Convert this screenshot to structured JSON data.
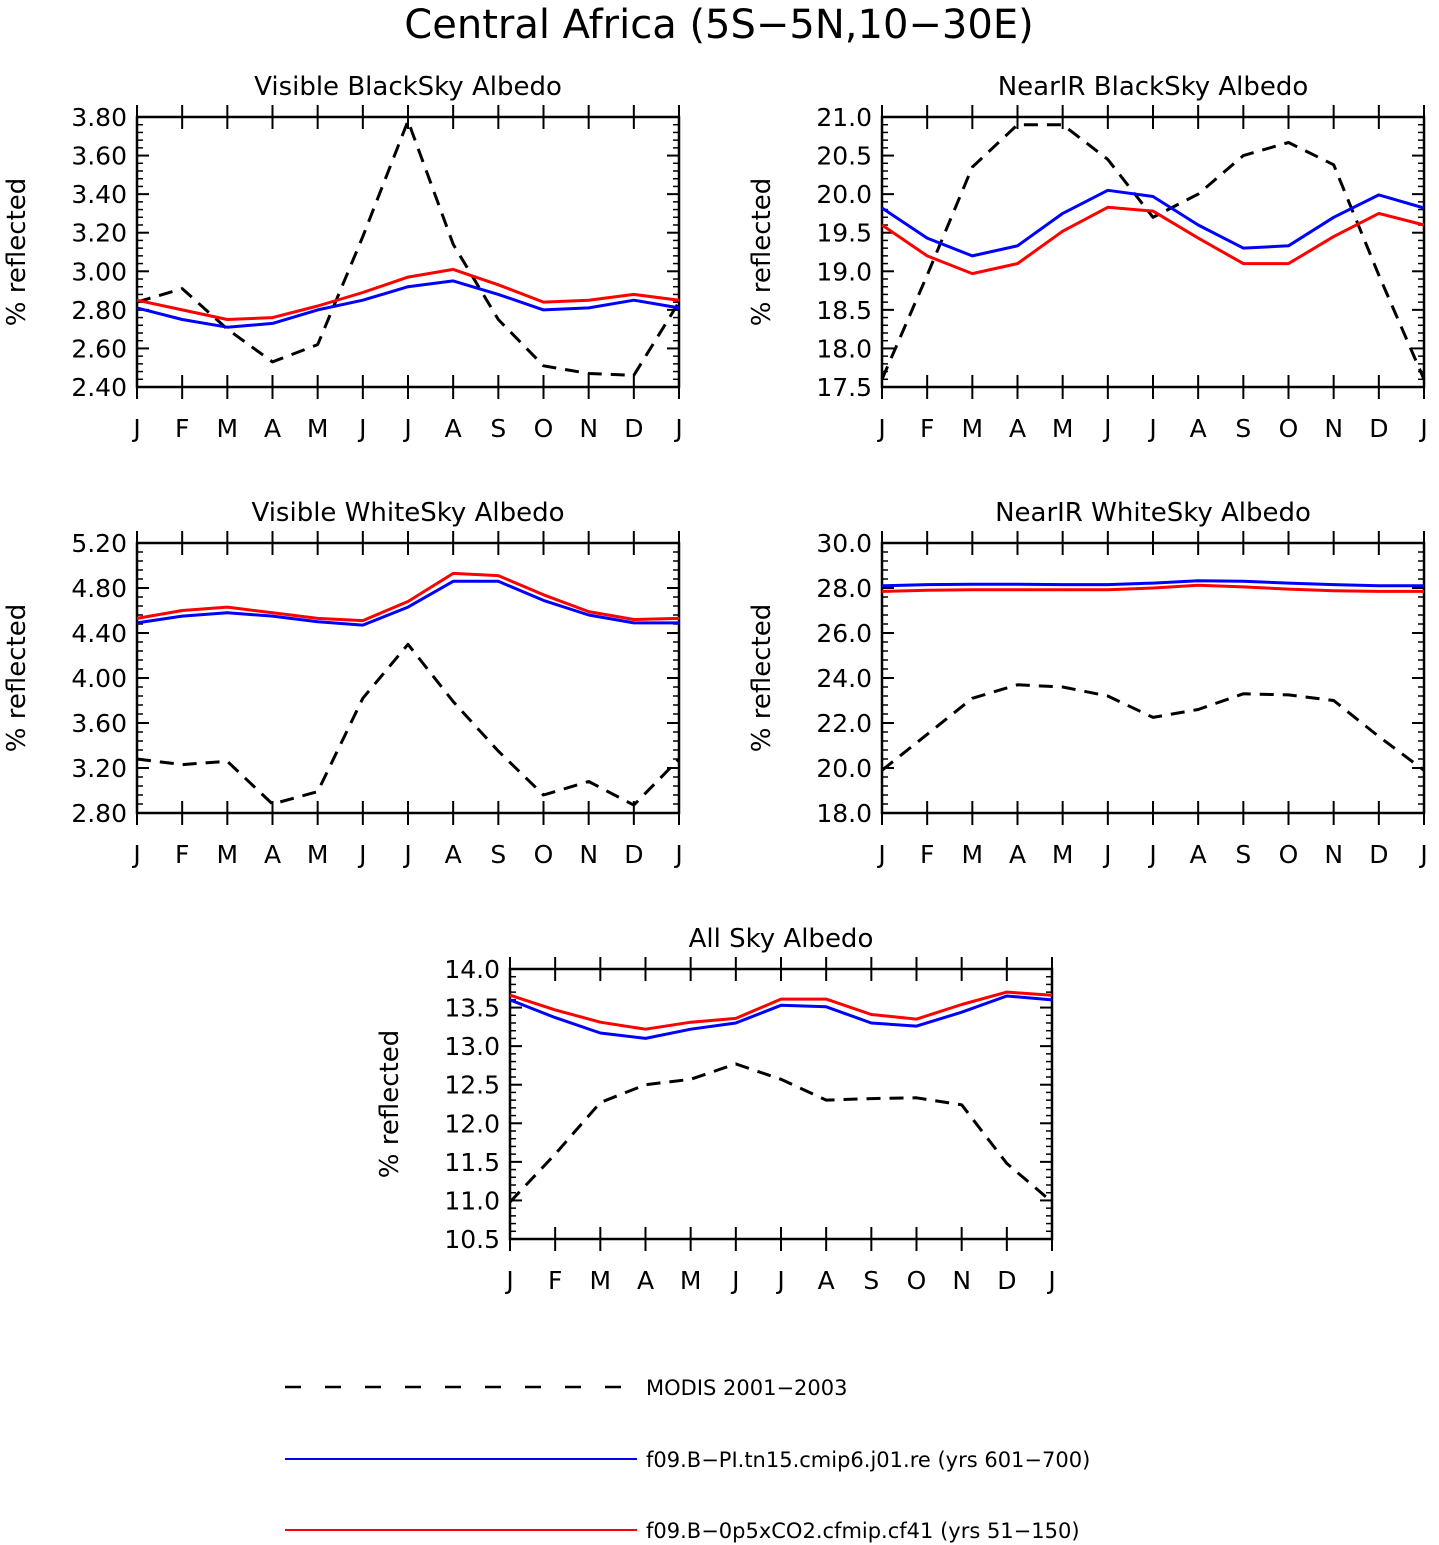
{
  "figure": {
    "title": "Central Africa (5S−5N,10−30E)"
  },
  "colors": {
    "modis": "#000000",
    "pi": "#0000ff",
    "co2": "#ff0000"
  },
  "chart_data": [
    {
      "type": "line",
      "title": "Visible BlackSky Albedo",
      "ylabel": "% reflected",
      "categories": [
        "J",
        "F",
        "M",
        "A",
        "M",
        "J",
        "J",
        "A",
        "S",
        "O",
        "N",
        "D",
        "J"
      ],
      "ylim": [
        2.4,
        3.8
      ],
      "yticks": [
        "2.40",
        "2.60",
        "2.80",
        "3.00",
        "3.20",
        "3.40",
        "3.60",
        "3.80"
      ],
      "series": [
        {
          "key": "modis",
          "values": [
            2.84,
            2.91,
            2.7,
            2.53,
            2.62,
            3.18,
            3.78,
            3.14,
            2.75,
            2.51,
            2.47,
            2.46,
            2.84
          ]
        },
        {
          "key": "pi",
          "values": [
            2.81,
            2.75,
            2.71,
            2.73,
            2.8,
            2.85,
            2.92,
            2.95,
            2.88,
            2.8,
            2.81,
            2.85,
            2.81
          ]
        },
        {
          "key": "co2",
          "values": [
            2.85,
            2.8,
            2.75,
            2.76,
            2.82,
            2.89,
            2.97,
            3.01,
            2.93,
            2.84,
            2.85,
            2.88,
            2.85
          ]
        }
      ]
    },
    {
      "type": "line",
      "title": "NearIR BlackSky Albedo",
      "ylabel": "% reflected",
      "categories": [
        "J",
        "F",
        "M",
        "A",
        "M",
        "J",
        "J",
        "A",
        "S",
        "O",
        "N",
        "D",
        "J"
      ],
      "ylim": [
        17.5,
        21.0
      ],
      "yticks": [
        "17.5",
        "18.0",
        "18.5",
        "19.0",
        "19.5",
        "20.0",
        "20.5",
        "21.0"
      ],
      "series": [
        {
          "key": "modis",
          "values": [
            17.6,
            18.95,
            20.35,
            20.9,
            20.9,
            20.45,
            19.7,
            20.0,
            20.5,
            20.67,
            20.38,
            18.95,
            17.6
          ]
        },
        {
          "key": "pi",
          "values": [
            19.82,
            19.43,
            19.2,
            19.33,
            19.75,
            20.05,
            19.97,
            19.6,
            19.3,
            19.33,
            19.7,
            19.99,
            19.82
          ]
        },
        {
          "key": "co2",
          "values": [
            19.6,
            19.2,
            18.97,
            19.1,
            19.52,
            19.83,
            19.78,
            19.43,
            19.1,
            19.1,
            19.45,
            19.75,
            19.6
          ]
        }
      ]
    },
    {
      "type": "line",
      "title": "Visible WhiteSky Albedo",
      "ylabel": "% reflected",
      "categories": [
        "J",
        "F",
        "M",
        "A",
        "M",
        "J",
        "J",
        "A",
        "S",
        "O",
        "N",
        "D",
        "J"
      ],
      "ylim": [
        2.8,
        5.2
      ],
      "yticks": [
        "2.80",
        "3.20",
        "3.60",
        "4.00",
        "4.40",
        "4.80",
        "5.20"
      ],
      "series": [
        {
          "key": "modis",
          "values": [
            3.28,
            3.23,
            3.26,
            2.88,
            2.99,
            3.82,
            4.3,
            3.79,
            3.35,
            2.96,
            3.08,
            2.87,
            3.28
          ]
        },
        {
          "key": "pi",
          "values": [
            4.49,
            4.55,
            4.58,
            4.55,
            4.5,
            4.47,
            4.63,
            4.86,
            4.86,
            4.69,
            4.56,
            4.49,
            4.49
          ]
        },
        {
          "key": "co2",
          "values": [
            4.53,
            4.6,
            4.63,
            4.58,
            4.53,
            4.51,
            4.68,
            4.93,
            4.91,
            4.74,
            4.59,
            4.52,
            4.53
          ]
        }
      ]
    },
    {
      "type": "line",
      "title": "NearIR WhiteSky Albedo",
      "ylabel": "% reflected",
      "categories": [
        "J",
        "F",
        "M",
        "A",
        "M",
        "J",
        "J",
        "A",
        "S",
        "O",
        "N",
        "D",
        "J"
      ],
      "ylim": [
        18.0,
        30.0
      ],
      "yticks": [
        "18.0",
        "20.0",
        "22.0",
        "24.0",
        "26.0",
        "28.0",
        "30.0"
      ],
      "series": [
        {
          "key": "modis",
          "values": [
            19.9,
            21.5,
            23.1,
            23.7,
            23.6,
            23.2,
            22.25,
            22.6,
            23.3,
            23.25,
            23.0,
            21.4,
            19.9
          ]
        },
        {
          "key": "pi",
          "values": [
            28.1,
            28.15,
            28.17,
            28.17,
            28.15,
            28.15,
            28.22,
            28.32,
            28.3,
            28.22,
            28.15,
            28.1,
            28.1
          ]
        },
        {
          "key": "co2",
          "values": [
            27.85,
            27.9,
            27.92,
            27.92,
            27.92,
            27.92,
            28.0,
            28.12,
            28.05,
            27.95,
            27.88,
            27.85,
            27.85
          ]
        }
      ]
    },
    {
      "type": "line",
      "title": "All Sky Albedo",
      "ylabel": "% reflected",
      "categories": [
        "J",
        "F",
        "M",
        "A",
        "M",
        "J",
        "J",
        "A",
        "S",
        "O",
        "N",
        "D",
        "J"
      ],
      "ylim": [
        10.5,
        14.0
      ],
      "yticks": [
        "10.5",
        "11.0",
        "11.5",
        "12.0",
        "12.5",
        "13.0",
        "13.5",
        "14.0"
      ],
      "series": [
        {
          "key": "modis",
          "values": [
            10.98,
            11.6,
            12.27,
            12.5,
            12.57,
            12.77,
            12.57,
            12.3,
            12.32,
            12.33,
            12.24,
            11.48,
            10.98
          ]
        },
        {
          "key": "pi",
          "values": [
            13.6,
            13.37,
            13.17,
            13.1,
            13.22,
            13.3,
            13.53,
            13.51,
            13.3,
            13.26,
            13.44,
            13.65,
            13.6
          ]
        },
        {
          "key": "co2",
          "values": [
            13.66,
            13.47,
            13.31,
            13.22,
            13.31,
            13.36,
            13.61,
            13.61,
            13.41,
            13.35,
            13.54,
            13.7,
            13.66
          ]
        }
      ]
    }
  ],
  "legend": {
    "placement": "bottom",
    "items": [
      {
        "key": "modis",
        "label": "MODIS 2001−2003",
        "dashed": true
      },
      {
        "key": "pi",
        "label": "f09.B−PI.tn15.cmip6.j01.re (yrs 601−700)",
        "dashed": false
      },
      {
        "key": "co2",
        "label": "f09.B−0p5xCO2.cfmip.cf41 (yrs 51−150)",
        "dashed": false
      }
    ]
  }
}
